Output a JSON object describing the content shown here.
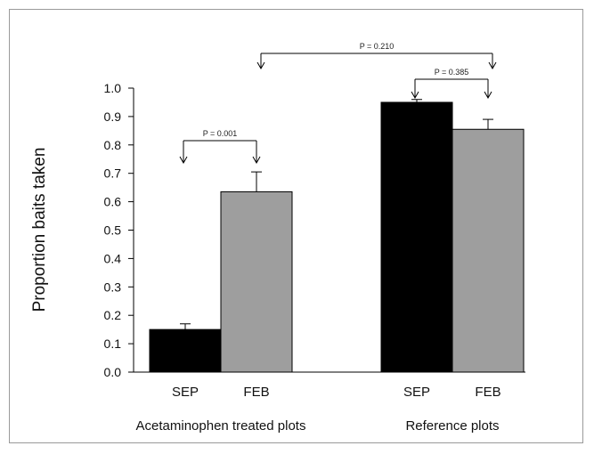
{
  "chart_data": {
    "type": "bar",
    "ylabel": "Proportion baits taken",
    "ylim": [
      0.0,
      1.0
    ],
    "yticks": [
      "0.0",
      "0.1",
      "0.2",
      "0.3",
      "0.4",
      "0.5",
      "0.6",
      "0.7",
      "0.8",
      "0.9",
      "1.0"
    ],
    "groups": [
      {
        "label": "Acetaminophen treated plots",
        "bars": [
          {
            "category": "SEP",
            "value": 0.15,
            "error": 0.02,
            "color": "#000000"
          },
          {
            "category": "FEB",
            "value": 0.635,
            "error": 0.07,
            "color": "#9e9e9e"
          }
        ]
      },
      {
        "label": "Reference plots",
        "bars": [
          {
            "category": "SEP",
            "value": 0.95,
            "error": 0.01,
            "color": "#000000"
          },
          {
            "category": "FEB",
            "value": 0.855,
            "error": 0.035,
            "color": "#9e9e9e"
          }
        ]
      }
    ],
    "annotations": [
      {
        "text": "P = 0.001",
        "between": [
          "Acetaminophen treated plots SEP",
          "Acetaminophen treated plots FEB"
        ]
      },
      {
        "text": "P = 0.385",
        "between": [
          "Reference plots SEP",
          "Reference plots FEB"
        ]
      },
      {
        "text": "P = 0.210",
        "between": [
          "Acetaminophen treated plots FEB",
          "Reference plots FEB"
        ]
      }
    ]
  }
}
